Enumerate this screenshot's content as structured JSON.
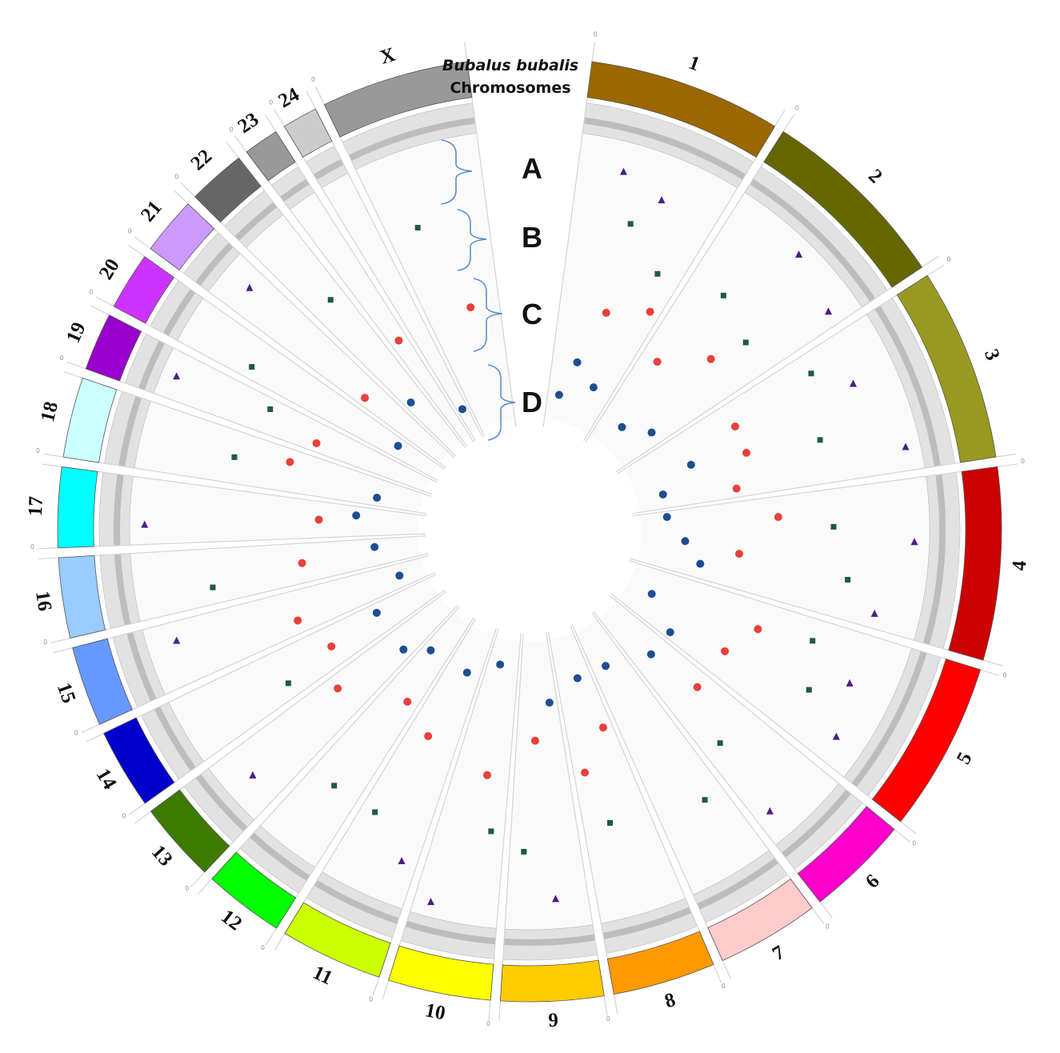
{
  "title": {
    "species": "Bubalus bubalis",
    "subtitle": "Chromosomes"
  },
  "tracks": [
    {
      "label": "A",
      "color": "#4b1d8a",
      "marker": "triangle"
    },
    {
      "label": "B",
      "color": "#1d5c3a",
      "marker": "square"
    },
    {
      "label": "C",
      "color": "#e8403a",
      "marker": "circle"
    },
    {
      "label": "D",
      "color": "#1e4d92",
      "marker": "circle"
    }
  ],
  "axis_zero_label": "0",
  "chromosomes": [
    {
      "name": "1",
      "color": "#9a6700",
      "points": [
        [
          0.2,
          3,
          0
        ],
        [
          0.3,
          0,
          1
        ],
        [
          0.35,
          3,
          2
        ],
        [
          0.45,
          1,
          2
        ],
        [
          0.5,
          2,
          1
        ],
        [
          0.6,
          0,
          0
        ],
        [
          0.7,
          3,
          1
        ],
        [
          0.8,
          1,
          0
        ],
        [
          0.9,
          2,
          2
        ]
      ]
    },
    {
      "name": "2",
      "color": "#666600",
      "points": [
        [
          0.2,
          2,
          0
        ],
        [
          0.3,
          1,
          1
        ],
        [
          0.4,
          3,
          0
        ],
        [
          0.5,
          0,
          2
        ],
        [
          0.6,
          2,
          2
        ],
        [
          0.7,
          1,
          0
        ],
        [
          0.8,
          3,
          1
        ],
        [
          0.9,
          0,
          1
        ]
      ]
    },
    {
      "name": "3",
      "color": "#999922",
      "points": [
        [
          0.15,
          1,
          2
        ],
        [
          0.25,
          2,
          1
        ],
        [
          0.35,
          0,
          0
        ],
        [
          0.45,
          3,
          2
        ],
        [
          0.55,
          2,
          1
        ],
        [
          0.65,
          1,
          1
        ],
        [
          0.75,
          3,
          0
        ],
        [
          0.85,
          0,
          2
        ],
        [
          0.9,
          2,
          0
        ]
      ]
    },
    {
      "name": "4",
      "color": "#cc0000",
      "points": [
        [
          0.1,
          3,
          0
        ],
        [
          0.2,
          2,
          2
        ],
        [
          0.3,
          1,
          1
        ],
        [
          0.4,
          0,
          2
        ],
        [
          0.5,
          3,
          1
        ],
        [
          0.6,
          2,
          0
        ],
        [
          0.7,
          1,
          2
        ],
        [
          0.8,
          3,
          2
        ],
        [
          0.9,
          0,
          0
        ]
      ]
    },
    {
      "name": "5",
      "color": "#ff0000",
      "points": [
        [
          0.2,
          1,
          1
        ],
        [
          0.3,
          2,
          2
        ],
        [
          0.4,
          0,
          0
        ],
        [
          0.5,
          3,
          0
        ],
        [
          0.6,
          1,
          2
        ],
        [
          0.7,
          2,
          1
        ],
        [
          0.8,
          0,
          1
        ],
        [
          0.9,
          3,
          2
        ]
      ]
    },
    {
      "name": "6",
      "color": "#ff00cc",
      "points": [
        [
          0.3,
          2,
          1
        ],
        [
          0.5,
          3,
          2
        ],
        [
          0.7,
          1,
          0
        ],
        [
          0.8,
          0,
          1
        ]
      ]
    },
    {
      "name": "7",
      "color": "#ffcccc",
      "points": [
        [
          0.3,
          1,
          2
        ],
        [
          0.6,
          3,
          1
        ]
      ]
    },
    {
      "name": "8",
      "color": "#ff9900",
      "points": [
        [
          0.2,
          2,
          0
        ],
        [
          0.4,
          3,
          1
        ],
        [
          0.6,
          1,
          1
        ],
        [
          0.8,
          2,
          2
        ]
      ]
    },
    {
      "name": "9",
      "color": "#ffcc00",
      "points": [
        [
          0.2,
          3,
          2
        ],
        [
          0.4,
          0,
          1
        ],
        [
          0.6,
          2,
          0
        ],
        [
          0.8,
          1,
          2
        ]
      ]
    },
    {
      "name": "10",
      "color": "#ffff00",
      "points": [
        [
          0.2,
          1,
          1
        ],
        [
          0.4,
          2,
          2
        ],
        [
          0.6,
          3,
          0
        ],
        [
          0.8,
          0,
          2
        ]
      ]
    },
    {
      "name": "11",
      "color": "#ccff00",
      "points": [
        [
          0.2,
          0,
          0
        ],
        [
          0.4,
          3,
          1
        ],
        [
          0.6,
          2,
          1
        ],
        [
          0.8,
          1,
          2
        ]
      ]
    },
    {
      "name": "12",
      "color": "#00ff00",
      "points": [
        [
          0.3,
          2,
          0
        ],
        [
          0.5,
          1,
          2
        ],
        [
          0.7,
          3,
          1
        ]
      ]
    },
    {
      "name": "13",
      "color": "#3d7a00",
      "points": [
        [
          0.3,
          3,
          2
        ],
        [
          0.5,
          0,
          1
        ],
        [
          0.7,
          2,
          2
        ]
      ]
    },
    {
      "name": "14",
      "color": "#0000cc",
      "points": [
        [
          0.3,
          1,
          0
        ],
        [
          0.5,
          2,
          1
        ],
        [
          0.7,
          3,
          2
        ]
      ]
    },
    {
      "name": "15",
      "color": "#6699ff",
      "points": [
        [
          0.3,
          2,
          2
        ],
        [
          0.5,
          3,
          0
        ],
        [
          0.7,
          0,
          1
        ]
      ]
    },
    {
      "name": "16",
      "color": "#99ccff",
      "points": [
        [
          0.3,
          1,
          2
        ],
        [
          0.5,
          2,
          1
        ],
        [
          0.7,
          3,
          1
        ]
      ]
    },
    {
      "name": "17",
      "color": "#00ffff",
      "points": [
        [
          0.3,
          0,
          2
        ],
        [
          0.5,
          2,
          0
        ],
        [
          0.7,
          3,
          2
        ]
      ]
    },
    {
      "name": "18",
      "color": "#ccffff",
      "points": [
        [
          0.3,
          3,
          1
        ],
        [
          0.5,
          1,
          1
        ],
        [
          0.7,
          2,
          2
        ]
      ]
    },
    {
      "name": "19",
      "color": "#9900cc",
      "points": [
        [
          0.3,
          2,
          1
        ],
        [
          0.5,
          0,
          2
        ],
        [
          0.7,
          1,
          0
        ]
      ]
    },
    {
      "name": "20",
      "color": "#cc33ff",
      "points": [
        [
          0.3,
          1,
          2
        ],
        [
          0.6,
          3,
          1
        ]
      ]
    },
    {
      "name": "21",
      "color": "#cc99ff",
      "points": [
        [
          0.3,
          2,
          0
        ],
        [
          0.6,
          0,
          1
        ]
      ]
    },
    {
      "name": "22",
      "color": "#666666",
      "points": [
        [
          0.3,
          3,
          2
        ],
        [
          0.6,
          1,
          1
        ]
      ]
    },
    {
      "name": "23",
      "color": "#999999",
      "points": [
        [
          0.5,
          2,
          1
        ]
      ]
    },
    {
      "name": "24",
      "color": "#cccccc",
      "points": [
        [
          0.5,
          3,
          0
        ]
      ]
    },
    {
      "name": "X",
      "color": "#999999",
      "points": [
        [
          0.3,
          1,
          2
        ],
        [
          0.6,
          2,
          1
        ]
      ]
    }
  ]
}
